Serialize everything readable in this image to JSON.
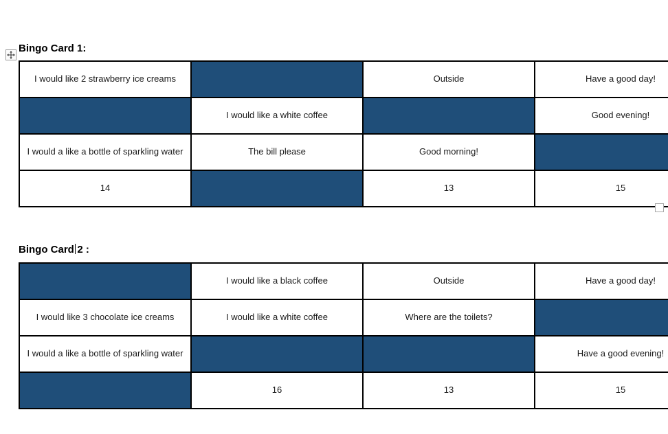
{
  "colors": {
    "fill": "#1F4E79",
    "grid": "#000000",
    "page_bg": "#FFFFFF",
    "handle_border": "#9A9A9A"
  },
  "handles": {
    "move_icon": "table-move-icon",
    "resize_icon": "table-resize-square"
  },
  "cards": [
    {
      "title_before_caret": "Bingo Card 1:",
      "title_after_caret": "",
      "caret": false,
      "rows": [
        [
          {
            "text": "I would like 2 strawberry ice creams",
            "filled": false
          },
          {
            "text": "",
            "filled": true
          },
          {
            "text": "Outside",
            "filled": false
          },
          {
            "text": "Have a good day!",
            "filled": false
          }
        ],
        [
          {
            "text": "",
            "filled": true
          },
          {
            "text": "I would like a white coffee",
            "filled": false
          },
          {
            "text": "",
            "filled": true
          },
          {
            "text": "Good evening!",
            "filled": false
          }
        ],
        [
          {
            "text": "I would a like a bottle of sparkling water",
            "filled": false
          },
          {
            "text": "The bill please",
            "filled": false
          },
          {
            "text": "Good morning!",
            "filled": false
          },
          {
            "text": "",
            "filled": true
          }
        ],
        [
          {
            "text": "14",
            "filled": false
          },
          {
            "text": "",
            "filled": true
          },
          {
            "text": "13",
            "filled": false
          },
          {
            "text": "15",
            "filled": false
          }
        ]
      ]
    },
    {
      "title_before_caret": "Bingo Card",
      "title_after_caret": "2 :",
      "caret": true,
      "rows": [
        [
          {
            "text": "",
            "filled": true
          },
          {
            "text": "I would like a black coffee",
            "filled": false
          },
          {
            "text": "Outside",
            "filled": false
          },
          {
            "text": "Have a good day!",
            "filled": false
          }
        ],
        [
          {
            "text": "I would like 3 chocolate ice creams",
            "filled": false
          },
          {
            "text": "I would like a white coffee",
            "filled": false
          },
          {
            "text": "Where are the toilets?",
            "filled": false
          },
          {
            "text": "",
            "filled": true
          }
        ],
        [
          {
            "text": "I would a like a bottle of sparkling water",
            "filled": false
          },
          {
            "text": "",
            "filled": true
          },
          {
            "text": "",
            "filled": true
          },
          {
            "text": "Have a good evening!",
            "filled": false
          }
        ],
        [
          {
            "text": "",
            "filled": true
          },
          {
            "text": "16",
            "filled": false
          },
          {
            "text": "13",
            "filled": false
          },
          {
            "text": "15",
            "filled": false
          }
        ]
      ]
    }
  ]
}
